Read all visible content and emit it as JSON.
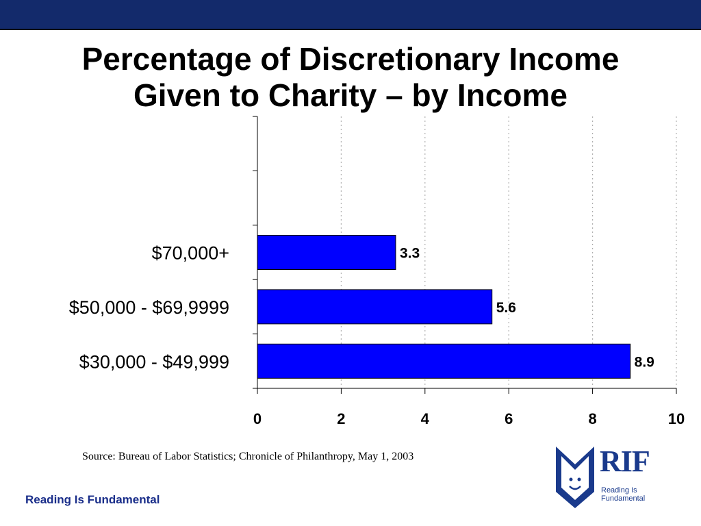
{
  "slide": {
    "title_line1": "Percentage of Discretionary Income",
    "title_line2": "Given to Charity – by Income",
    "source": "Source:  Bureau of Labor Statistics; Chronicle of Philanthropy, May 1, 2003",
    "footer": "Reading Is Fundamental",
    "top_bar_color": "#132a6b"
  },
  "logo": {
    "mark": "RIF",
    "line1": "Reading Is",
    "line2": "Fundamental",
    "icon": "book-face-icon",
    "color": "#1a3a8c"
  },
  "chart_data": {
    "type": "bar",
    "orientation": "horizontal",
    "categories": [
      "$70,000+",
      "$50,000 - $69,9999",
      "$30,000 - $49,999"
    ],
    "values": [
      3.3,
      5.6,
      8.9
    ],
    "data_labels": [
      "3.3",
      "5.6",
      "8.9"
    ],
    "xlim": [
      0,
      10
    ],
    "xticks": [
      "0",
      "2",
      "4",
      "6",
      "8",
      "10"
    ],
    "bar_color": "#0000ff",
    "grid": "vertical dotted",
    "legend": "none"
  }
}
